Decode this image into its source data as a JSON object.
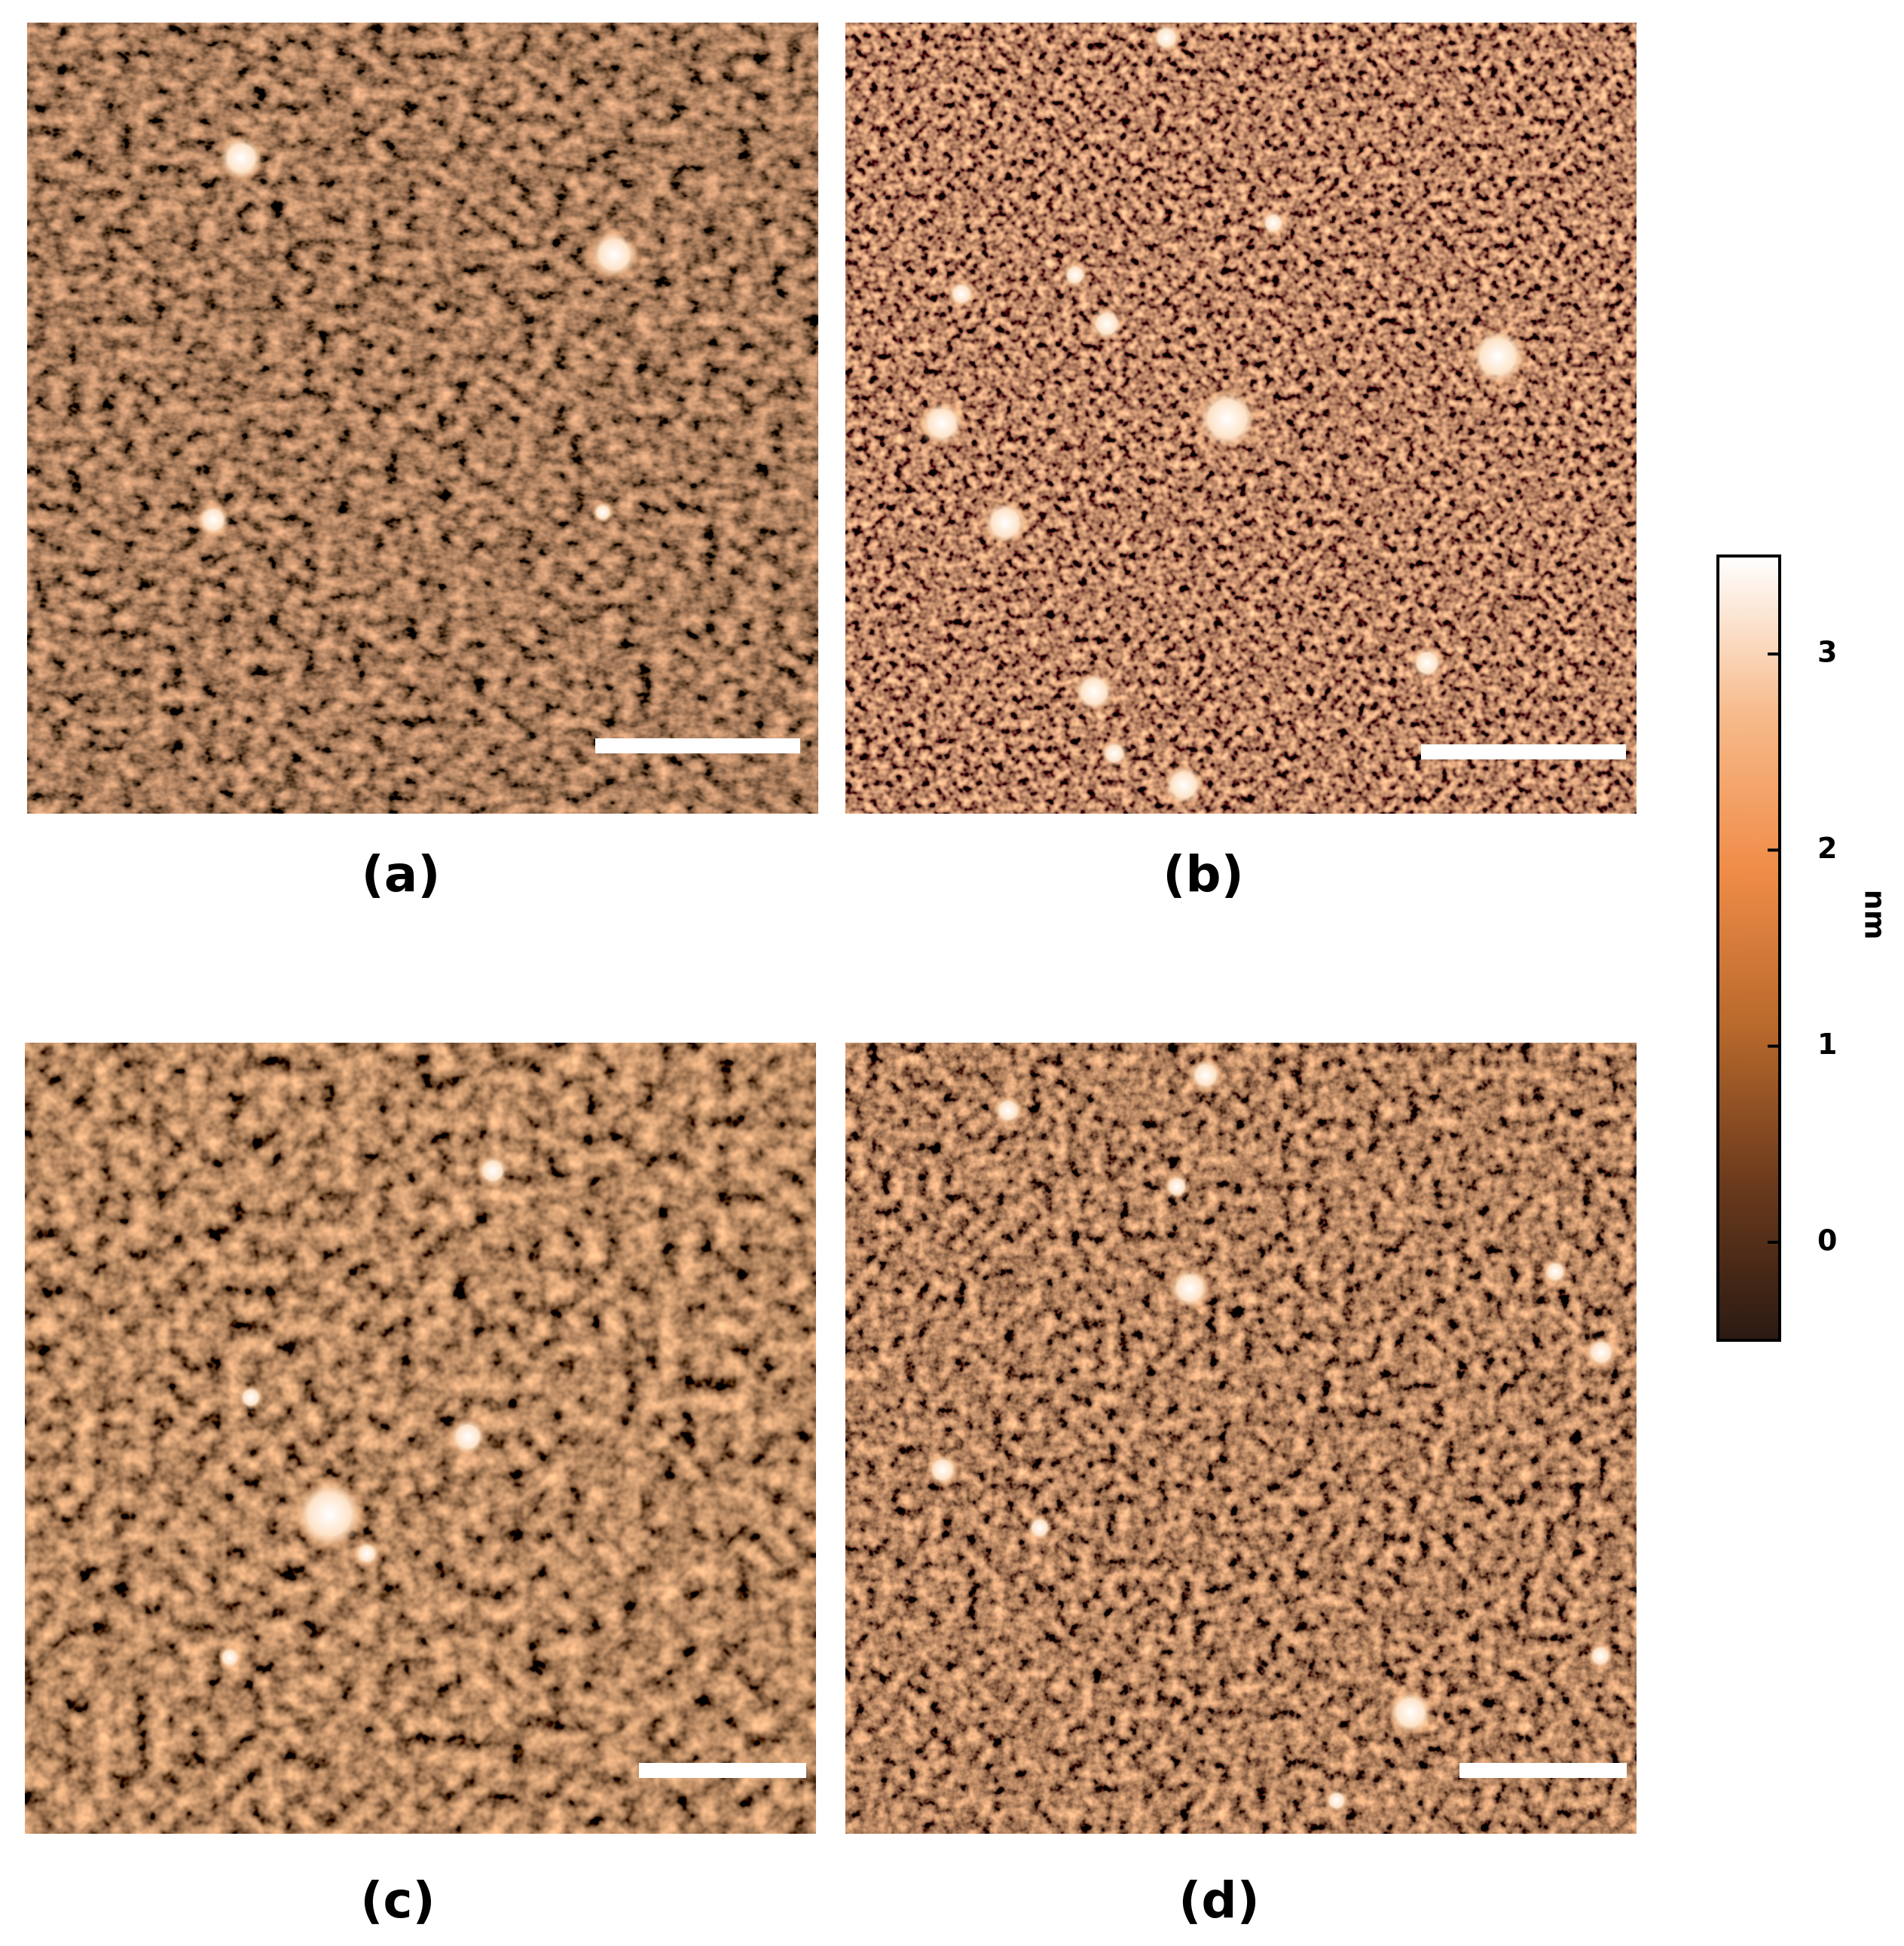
{
  "panels": [
    {
      "label": "(a)"
    },
    {
      "label": "(b)"
    },
    {
      "label": "(c)"
    },
    {
      "label": "(d)"
    }
  ],
  "colorbar": {
    "label": "nm",
    "lim": [
      -0.5,
      3.5
    ],
    "ticks": [
      0,
      1,
      2,
      3
    ],
    "colors": [
      "#2b1a12",
      "#6b3a1c",
      "#b8692c",
      "#f08c48",
      "#f7bb8c",
      "#ffffff"
    ]
  }
}
